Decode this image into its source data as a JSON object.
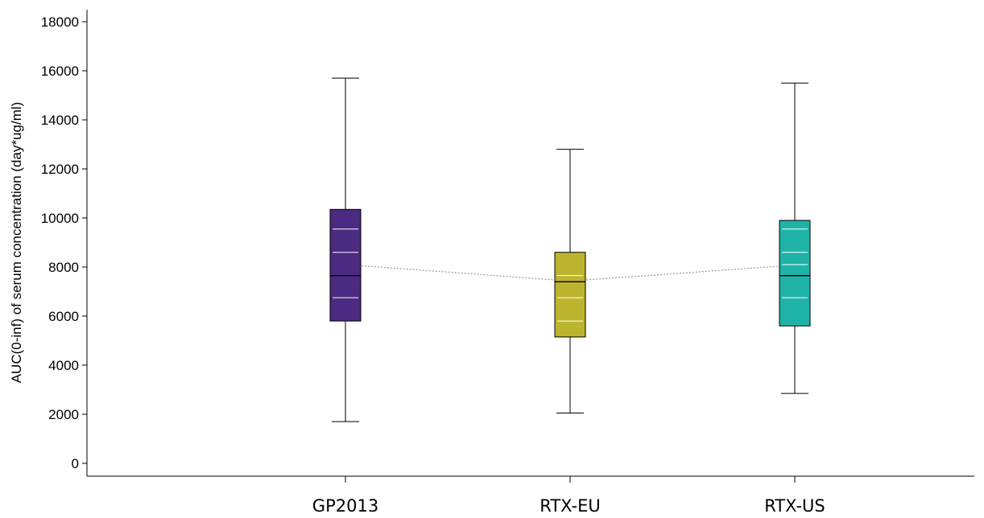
{
  "chart_data": {
    "type": "box",
    "title": "",
    "xlabel": "",
    "ylabel": "AUC(0-inf) of serum concentration (day*ug/ml)",
    "ylim": [
      0,
      18000
    ],
    "yticks": [
      0,
      2000,
      4000,
      6000,
      8000,
      10000,
      12000,
      14000,
      16000,
      18000
    ],
    "ytick_labels": [
      "0",
      "2000",
      "4000",
      "6000",
      "8000",
      "10000",
      "12000",
      "14000",
      "16000",
      "18000"
    ],
    "grid": false,
    "legend": "none",
    "mean_line": "dotted gray line connecting group means",
    "categories": [
      "GP2013",
      "RTX-EU",
      "RTX-US"
    ],
    "series": [
      {
        "category": "GP2013",
        "color": "#4b2a82",
        "min": 1700,
        "q1": 5800,
        "median": 7650,
        "q3": 10350,
        "max": 15700,
        "mean": 8100,
        "inner_lines": [
          6750,
          8600,
          9550
        ]
      },
      {
        "category": "RTX-EU",
        "color": "#bdb42e",
        "min": 2050,
        "q1": 5150,
        "median": 7400,
        "q3": 8600,
        "max": 12800,
        "mean": 7430,
        "inner_lines": [
          5800,
          6750,
          7650
        ]
      },
      {
        "category": "RTX-US",
        "color": "#1fb3a8",
        "min": 2850,
        "q1": 5600,
        "median": 7650,
        "q3": 9900,
        "max": 15500,
        "mean": 8080,
        "inner_lines": [
          6750,
          8100,
          8600,
          9550
        ]
      }
    ]
  }
}
